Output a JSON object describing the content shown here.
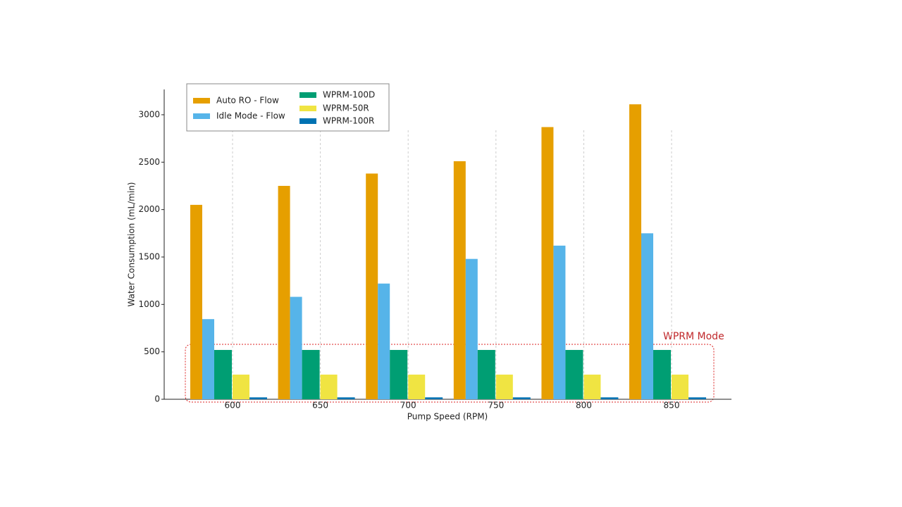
{
  "chart_data": {
    "type": "bar",
    "x_label": "Pump Speed (RPM)",
    "y_label": "Water Consumption (mL/min)",
    "annotation": "WPRM Mode",
    "categories": [
      "600",
      "650",
      "700",
      "750",
      "800",
      "850"
    ],
    "series": [
      {
        "name": "Auto RO - Flow",
        "color": "#E69F00",
        "values": [
          2050,
          2250,
          2380,
          2510,
          2870,
          3110
        ]
      },
      {
        "name": "Idle Mode - Flow",
        "color": "#56B4E9",
        "values": [
          845,
          1080,
          1220,
          1480,
          1620,
          1750
        ]
      },
      {
        "name": "WPRM-100D",
        "color": "#009E73",
        "values": [
          520,
          520,
          520,
          520,
          520,
          520
        ]
      },
      {
        "name": "WPRM-50R",
        "color": "#F0E442",
        "values": [
          260,
          260,
          260,
          260,
          260,
          260
        ]
      },
      {
        "name": "WPRM-100R",
        "color": "#0072B2",
        "values": [
          20,
          20,
          20,
          20,
          20,
          20
        ]
      }
    ],
    "ylim": [
      0,
      3267
    ],
    "yticks": [
      0,
      500,
      1000,
      1500,
      2000,
      2500,
      3000
    ],
    "grid": true,
    "legend": "upper left"
  }
}
